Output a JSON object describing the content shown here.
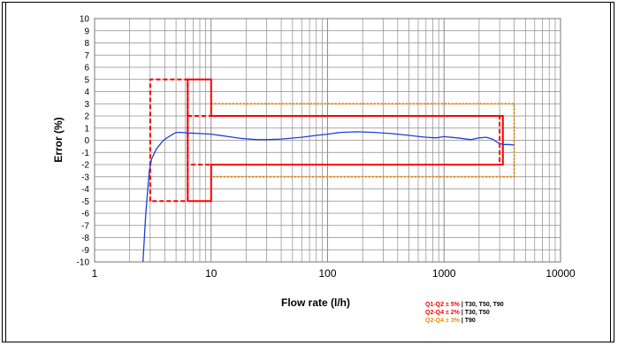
{
  "chart_data": {
    "type": "line",
    "xlabel": "Flow rate (l/h)",
    "ylabel": "Error (%)",
    "xscale": "log",
    "xlim": [
      1,
      10000
    ],
    "ylim": [
      -10,
      10
    ],
    "x_ticks": [
      "1",
      "10",
      "100",
      "1000",
      "10000"
    ],
    "y_ticks": [
      "10",
      "9",
      "8",
      "7",
      "6",
      "5",
      "4",
      "3",
      "2",
      "1",
      "0",
      "-1",
      "-2",
      "-3",
      "-4",
      "-5",
      "-6",
      "-7",
      "-8",
      "-9",
      "-10"
    ],
    "grid": true,
    "series": [
      {
        "x": [
          2.6,
          2.75,
          2.95,
          3.1,
          3.4,
          3.9,
          4.5,
          5.0,
          5.5,
          6.5,
          8,
          10,
          13,
          18,
          25,
          30,
          40,
          60,
          80,
          100,
          130,
          180,
          250,
          350,
          500,
          700,
          850,
          1000,
          1300,
          1700,
          2000,
          2300,
          2600,
          2900,
          3200,
          3600,
          4000
        ],
        "y": [
          -10,
          -6,
          -2.5,
          -1.5,
          -0.7,
          0.0,
          0.4,
          0.65,
          0.65,
          0.6,
          0.55,
          0.5,
          0.35,
          0.15,
          0.05,
          0.05,
          0.1,
          0.25,
          0.4,
          0.5,
          0.65,
          0.7,
          0.65,
          0.55,
          0.4,
          0.25,
          0.2,
          0.3,
          0.2,
          0.05,
          0.2,
          0.25,
          0.1,
          -0.2,
          -0.35,
          -0.35,
          -0.4
        ]
      }
    ],
    "envelopes": [
      {
        "legend_label": "Q1-Q2 ± 5%",
        "legend_tests": "| T30, T50, T90",
        "color": "#ff0000",
        "style": "dashed",
        "points": [
          [
            3,
            -5
          ],
          [
            3,
            5
          ],
          [
            6.3,
            5
          ],
          [
            6.3,
            -2
          ],
          [
            3000,
            -2
          ],
          [
            3000,
            2
          ],
          [
            6.3,
            2
          ],
          [
            6.3,
            -5
          ],
          [
            3,
            -5
          ]
        ]
      },
      {
        "legend_label": "Q2-Q4 ± 2%",
        "legend_tests": "| T30, T50",
        "color": "#ff0000",
        "style": "solid",
        "points": [
          [
            6.3,
            -5
          ],
          [
            6.3,
            5
          ],
          [
            10,
            5
          ],
          [
            10,
            2
          ],
          [
            3200,
            2
          ],
          [
            3200,
            -2
          ],
          [
            10,
            -2
          ],
          [
            10,
            -5
          ],
          [
            6.3,
            -5
          ]
        ]
      },
      {
        "legend_label": "Q2-Q4 ± 3%",
        "legend_tests": "| T90",
        "color": "#f08c00",
        "style": "dotted",
        "points": [
          [
            10,
            3
          ],
          [
            4000,
            3
          ],
          [
            4000,
            -3
          ],
          [
            10,
            -3
          ]
        ]
      }
    ]
  }
}
